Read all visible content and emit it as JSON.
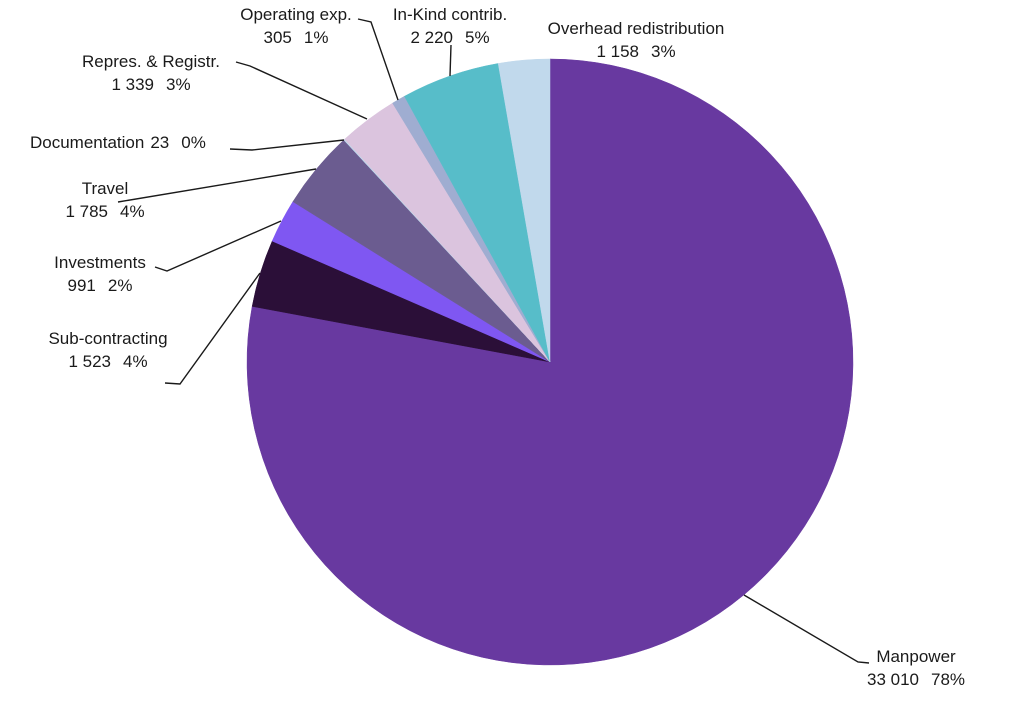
{
  "chart_data": {
    "type": "pie",
    "legend": "none",
    "label_style": "outside-callouts",
    "start_angle_deg": 0,
    "direction": "clockwise",
    "slices": [
      {
        "id": "manpower",
        "name": "Manpower",
        "value": 33010,
        "value_text": "33 010",
        "pct_text": "78%",
        "color": "#6839A0"
      },
      {
        "id": "sub-contracting",
        "name": "Sub-contracting",
        "value": 1523,
        "value_text": "1 523",
        "pct_text": "4%",
        "color": "#2B0F38"
      },
      {
        "id": "investments",
        "name": "Investments",
        "value": 991,
        "value_text": "991",
        "pct_text": "2%",
        "color": "#7F57F2"
      },
      {
        "id": "travel",
        "name": "Travel",
        "value": 1785,
        "value_text": "1 785",
        "pct_text": "4%",
        "color": "#6B5C90"
      },
      {
        "id": "documentation",
        "name": "Documentation",
        "value": 23,
        "value_text": "23",
        "pct_text": "0%",
        "color": "#BDD7EA"
      },
      {
        "id": "repres-registr",
        "name": "Repres. & Registr.",
        "value": 1339,
        "value_text": "1 339",
        "pct_text": "3%",
        "color": "#DBC4DE"
      },
      {
        "id": "operating-exp",
        "name": "Operating exp.",
        "value": 305,
        "value_text": "305",
        "pct_text": "1%",
        "color": "#9FADD1"
      },
      {
        "id": "in-kind",
        "name": "In-Kind contrib.",
        "value": 2220,
        "value_text": "2 220",
        "pct_text": "5%",
        "color": "#57BDC9"
      },
      {
        "id": "overhead",
        "name": "Overhead redistribution",
        "value": 1158,
        "value_text": "1 158",
        "pct_text": "3%",
        "color": "#C1D9EC"
      }
    ]
  }
}
